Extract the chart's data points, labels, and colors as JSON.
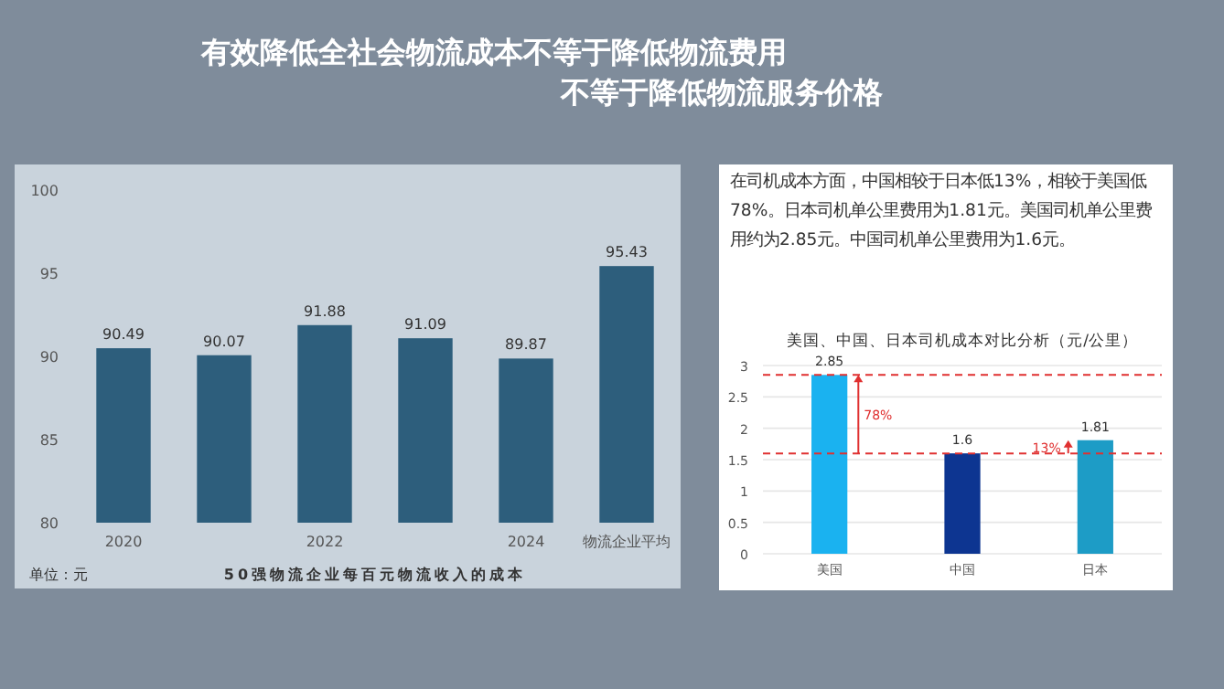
{
  "chart_data": [
    {
      "type": "bar",
      "title": "有效降低全社会物流成本不等于降低物流费用",
      "subtitle": "不等于降低物流服务价格",
      "xlabel": "50强物流企业每百元物流收入的成本",
      "categories": [
        "2020",
        null,
        "2022",
        null,
        "2024",
        "物流企业平均"
      ],
      "values": [
        90.49,
        90.07,
        91.88,
        91.09,
        89.87,
        95.43
      ],
      "color": "#2d5e7c",
      "ylim": [
        80,
        100
      ],
      "yticks": [
        80,
        85,
        90,
        95,
        100
      ],
      "data_labels": true,
      "annotations": [
        "单位：元"
      ]
    },
    {
      "type": "other",
      "annotations": [
        "在司机成本方面，中国相较于日本低13%，相较于美国低78%。日本司机单公里费用为1.81元。美国司机单公里费用约为2.85元。中国司机单公里费用为1.6元。"
      ]
    },
    {
      "type": "bar",
      "title": "美国、中国、日本司机成本对比分析（元/公里）",
      "categories": [
        "美国",
        "中国",
        "日本"
      ],
      "values": [
        2.85,
        1.6,
        1.81
      ],
      "colors": [
        "#1ab2f0",
        "#0d3591",
        "#1d9cc6"
      ],
      "ylim": [
        0,
        3
      ],
      "yticks": [
        0,
        0.5,
        1,
        1.5,
        2,
        2.5,
        3
      ],
      "grid": "y",
      "data_labels": true,
      "ref_lines": [
        {
          "axis": "y",
          "value": 1.6,
          "color": "#e03030",
          "line_style": "dashed"
        },
        {
          "axis": "y",
          "value": 2.85,
          "color": "#e03030",
          "line_style": "dashed"
        }
      ],
      "annotations": [
        "78%",
        "13%"
      ]
    }
  ]
}
